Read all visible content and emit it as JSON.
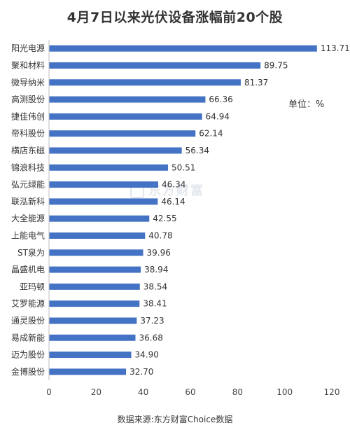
{
  "title": "4月7日以来光伏设备涨幅前20个股",
  "unit_label": "单位：%",
  "source_note": "数据来源:东方财富Choice数据",
  "watermark": "东方财富",
  "chart_data": {
    "type": "bar",
    "orientation": "horizontal",
    "title": "4月7日以来光伏设备涨幅前20个股",
    "categories": [
      "阳光电源",
      "聚和材料",
      "微导纳米",
      "高测股份",
      "捷佳伟创",
      "帝科股份",
      "横店东磁",
      "锦浪科技",
      "弘元绿能",
      "联泓新科",
      "大全能源",
      "上能电气",
      "ST泉为",
      "晶盛机电",
      "亚玛顿",
      "艾罗能源",
      "通灵股份",
      "易成新能",
      "迈为股份",
      "金博股份"
    ],
    "values": [
      113.71,
      89.75,
      81.37,
      66.36,
      64.94,
      62.14,
      56.34,
      50.51,
      46.34,
      46.14,
      42.55,
      40.78,
      39.96,
      38.94,
      38.54,
      38.41,
      37.23,
      36.68,
      34.9,
      32.7
    ],
    "value_labels": [
      "113.71",
      "89.75",
      "81.37",
      "66.36",
      "64.94",
      "62.14",
      "56.34",
      "50.51",
      "46.34",
      "46.14",
      "42.55",
      "40.78",
      "39.96",
      "38.94",
      "38.54",
      "38.41",
      "37.23",
      "36.68",
      "34.90",
      "32.70"
    ],
    "xlim": [
      0,
      120
    ],
    "xticks": [
      "0",
      "20",
      "40",
      "60",
      "80",
      "100",
      "120"
    ],
    "bar_color": "#4472c4",
    "grid": false,
    "legend": "none"
  }
}
